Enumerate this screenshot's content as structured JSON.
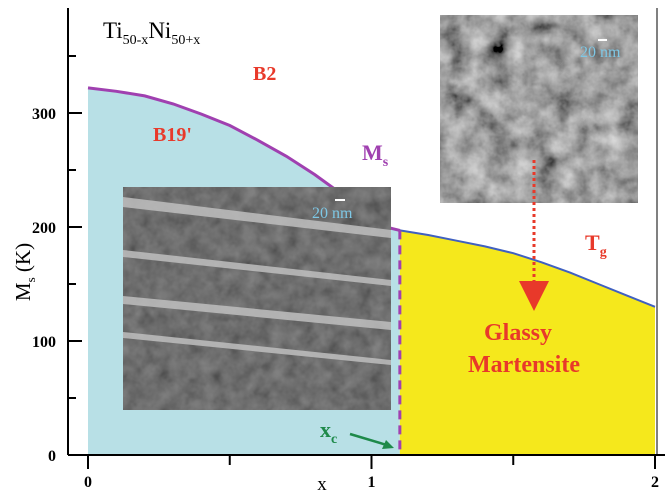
{
  "chart_data": {
    "type": "area",
    "title": "Ti50-xNi50+x",
    "title_parts": {
      "base1": "Ti",
      "sub1": "50-x",
      "base2": "Ni",
      "sub2": "50+x"
    },
    "xlabel": "x",
    "ylabel": {
      "base": "M",
      "sub": "s",
      "rest": " (K)"
    },
    "xlim": [
      0,
      2
    ],
    "ylim": [
      0,
      355
    ],
    "x_ticks": [
      0,
      0.5,
      1,
      1.5,
      2
    ],
    "x_tick_labels": [
      "0",
      "",
      "1",
      "",
      "2"
    ],
    "y_ticks": [
      0,
      50,
      100,
      150,
      200,
      250,
      300,
      350
    ],
    "y_tick_labels": [
      "0",
      "",
      "100",
      "",
      "200",
      "",
      "300",
      ""
    ],
    "x_c": 1.1,
    "series": [
      {
        "name": "Ms",
        "label": {
          "base": "M",
          "sub": "s"
        },
        "color": "#a040b0",
        "x": [
          0,
          0.1,
          0.2,
          0.3,
          0.4,
          0.5,
          0.6,
          0.7,
          0.8,
          0.9,
          0.95,
          1.0,
          1.05,
          1.1
        ],
        "y": [
          322,
          319,
          315,
          308,
          299,
          289,
          276,
          262,
          246,
          228,
          219,
          209,
          200,
          197
        ]
      },
      {
        "name": "Tg",
        "label": {
          "base": "T",
          "sub": "g"
        },
        "color": "#4060c0",
        "x": [
          1.1,
          1.2,
          1.3,
          1.4,
          1.5,
          1.6,
          1.7,
          1.8,
          1.9,
          2.0
        ],
        "y": [
          197,
          193,
          188,
          183,
          177,
          169,
          160,
          150,
          140,
          130
        ]
      }
    ],
    "regions": [
      {
        "name": "B19'",
        "color": "#b8e0e6",
        "x_range": [
          0,
          1.1
        ]
      },
      {
        "name": "Glassy Martensite",
        "color": "#f5e81c",
        "x_range": [
          1.1,
          2.0
        ]
      }
    ],
    "annotations": {
      "b2": "B2",
      "b19": "B19'",
      "glassy_line1": "Glassy",
      "glassy_line2": "Martensite",
      "xc": {
        "base": "x",
        "sub": "c"
      },
      "scale_bar": "20 nm"
    }
  },
  "colors": {
    "text_red": "#e8392a",
    "xc_green": "#1e8a4a",
    "scale_text": "#7ec8e6"
  }
}
